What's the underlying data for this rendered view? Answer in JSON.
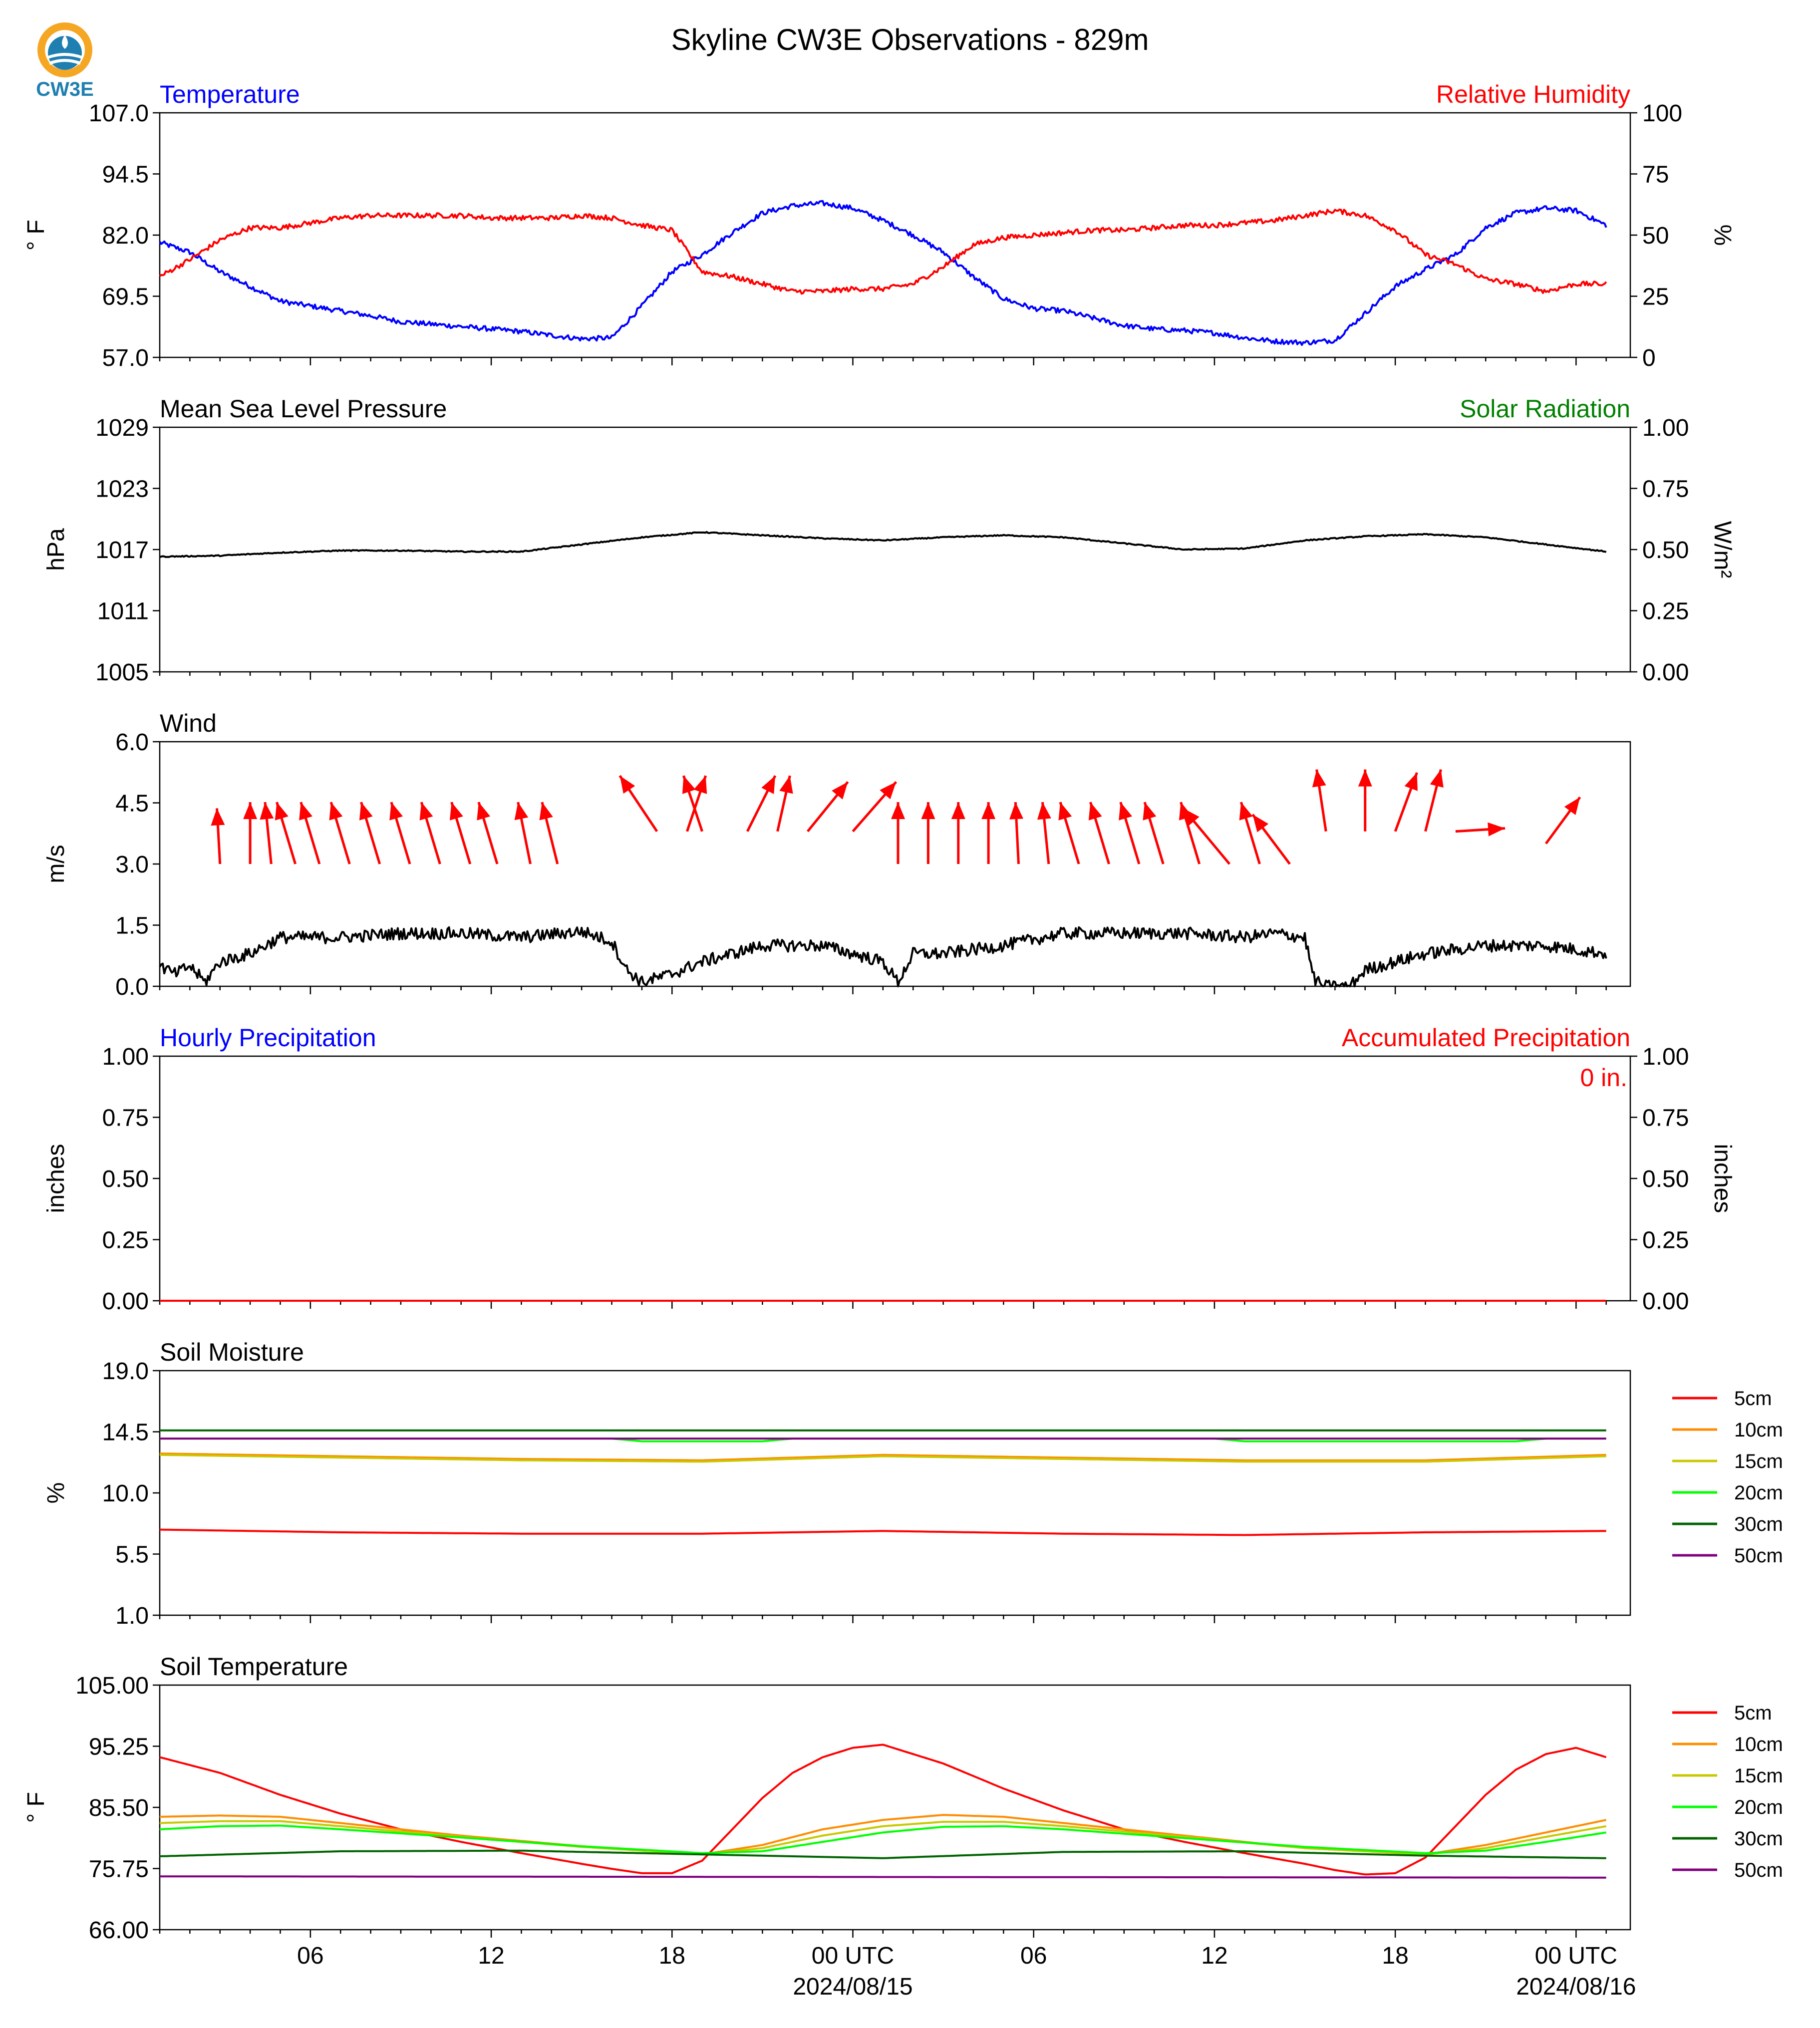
{
  "title": "Skyline CW3E Observations - 829m",
  "logo_text": "CW3E",
  "colors": {
    "blue": "#0000ff",
    "red": "#ff0000",
    "green": "#008000",
    "black": "#000000",
    "orange": "#ff8c00",
    "olive": "#c8c800",
    "lime": "#00ff00",
    "darkgreen": "#006400",
    "purple": "#800080",
    "logo_orange": "#f5a623",
    "logo_blue": "#1e7fb0"
  },
  "x_axis": {
    "tick_labels": [
      "06",
      "12",
      "18",
      "00 UTC",
      "06",
      "12",
      "18",
      "00 UTC"
    ],
    "date_labels": [
      "2024/08/15",
      "2024/08/16"
    ]
  },
  "chart_data": [
    {
      "type": "line",
      "title_left": "Temperature",
      "title_right": "Relative Humidity",
      "ylabel": "° F",
      "ylabel_right": "%",
      "yticks": [
        "57.0",
        "69.5",
        "82.0",
        "94.5",
        "107.0"
      ],
      "yticks_right": [
        "0",
        "25",
        "50",
        "75",
        "100"
      ],
      "ylim": [
        57,
        107
      ],
      "ylim_right": [
        0,
        100
      ],
      "x_unit": "hours since 2024/08/14 01:00 UTC",
      "series": [
        {
          "name": "Temperature",
          "axis": "left",
          "color": "blue",
          "noise": 0.5,
          "x": [
            0,
            1,
            2,
            3,
            4,
            5,
            6,
            7,
            8,
            9,
            10,
            11,
            12,
            13,
            14,
            15,
            16,
            17,
            18,
            19,
            20,
            21,
            22,
            23,
            24,
            25,
            26,
            27,
            28,
            29,
            30,
            31,
            32,
            33,
            34,
            35,
            36,
            37,
            38,
            39,
            40,
            41,
            42,
            43,
            44,
            45,
            46,
            47,
            48
          ],
          "values": [
            80.5,
            78.5,
            74.5,
            71.5,
            68.5,
            67.5,
            66.5,
            65.5,
            64.3,
            63.8,
            63.3,
            62.8,
            62.3,
            61.5,
            60.8,
            61.0,
            67.5,
            74.5,
            78.0,
            82.5,
            86.5,
            88.0,
            88.5,
            87.5,
            85.0,
            82.0,
            78.5,
            73.5,
            69.0,
            67.0,
            66.5,
            65.0,
            63.5,
            62.8,
            62.5,
            62.0,
            61.0,
            60.3,
            60.0,
            60.5,
            66.0,
            71.5,
            75.0,
            78.0,
            83.5,
            86.5,
            87.5,
            87.0,
            84.0
          ]
        },
        {
          "name": "Relative Humidity",
          "axis": "right",
          "color": "red",
          "noise": 1.0,
          "x": [
            0,
            1,
            2,
            3,
            4,
            5,
            6,
            7,
            8,
            9,
            10,
            11,
            12,
            13,
            14,
            15,
            16,
            17,
            18,
            19,
            20,
            21,
            22,
            23,
            24,
            25,
            26,
            27,
            28,
            29,
            30,
            31,
            32,
            33,
            34,
            35,
            36,
            37,
            38,
            39,
            40,
            41,
            42,
            43,
            44,
            45,
            46,
            47,
            48
          ],
          "values": [
            33,
            40,
            48,
            53,
            53,
            55,
            57,
            58,
            58,
            58,
            58,
            57,
            57,
            57,
            58,
            57,
            54,
            52,
            35,
            33,
            30,
            27,
            27,
            28,
            28,
            30,
            37,
            46,
            49,
            50,
            51,
            52,
            52,
            53,
            54,
            54,
            55,
            56,
            58,
            60,
            58,
            52,
            42,
            38,
            32,
            30,
            27,
            30,
            30
          ]
        }
      ]
    },
    {
      "type": "line",
      "title_left": "Mean Sea Level Pressure",
      "title_right": "Solar Radiation",
      "ylabel": "hPa",
      "ylabel_right": "W/m²",
      "yticks": [
        "1005",
        "1011",
        "1017",
        "1023",
        "1029"
      ],
      "yticks_right": [
        "0.00",
        "0.25",
        "0.50",
        "0.75",
        "1.00"
      ],
      "ylim": [
        1005,
        1029
      ],
      "ylim_right": [
        0,
        1
      ],
      "series": [
        {
          "name": "Mean Sea Level Pressure",
          "axis": "left",
          "color": "black",
          "noise": 0.05,
          "x": [
            0,
            2,
            4,
            6,
            8,
            10,
            12,
            14,
            16,
            18,
            20,
            22,
            24,
            26,
            28,
            30,
            32,
            34,
            36,
            38,
            40,
            42,
            44,
            46,
            48
          ],
          "values": [
            1016.3,
            1016.4,
            1016.7,
            1016.9,
            1016.9,
            1016.8,
            1016.8,
            1017.5,
            1018.2,
            1018.7,
            1018.4,
            1018.1,
            1017.9,
            1018.2,
            1018.4,
            1018.2,
            1017.6,
            1017.0,
            1017.1,
            1017.9,
            1018.3,
            1018.5,
            1018.2,
            1017.5,
            1016.8
          ]
        }
      ]
    },
    {
      "type": "line",
      "title_left": "Wind",
      "ylabel": "m/s",
      "yticks": [
        "0.0",
        "1.5",
        "3.0",
        "4.5",
        "6.0"
      ],
      "ylim": [
        0,
        6
      ],
      "series": [
        {
          "name": "Wind",
          "axis": "left",
          "color": "black",
          "noise": 0.15,
          "x": [
            0,
            0.5,
            1,
            1.5,
            2,
            3,
            4,
            6,
            8,
            10,
            12,
            14,
            15,
            15.5,
            16,
            17,
            18,
            19,
            20,
            21,
            22,
            23,
            24,
            24.5,
            25,
            26,
            28,
            30,
            32,
            34,
            36,
            37,
            38,
            38.3,
            38.6,
            39.5,
            40,
            41,
            42,
            43,
            44,
            46,
            48
          ],
          "values": [
            0.5,
            0.3,
            0.5,
            0.1,
            0.6,
            0.8,
            1.2,
            1.2,
            1.3,
            1.3,
            1.2,
            1.35,
            1.1,
            0.4,
            0.1,
            0.3,
            0.6,
            0.8,
            1.0,
            1.0,
            1.0,
            0.8,
            0.6,
            0.1,
            0.8,
            0.8,
            1.0,
            1.3,
            1.3,
            1.3,
            1.2,
            1.3,
            1.2,
            0.2,
            0.0,
            0.0,
            0.4,
            0.6,
            0.8,
            0.9,
            1.0,
            1.0,
            0.8
          ]
        }
      ],
      "wind_vectors": {
        "x": [
          2,
          3,
          3.7,
          4.5,
          5.3,
          6.3,
          7.3,
          8.3,
          9.3,
          10.3,
          11.2,
          12.3,
          13.2,
          16.5,
          17.5,
          18,
          19.5,
          20.5,
          21.5,
          23,
          24.5,
          25.5,
          26.5,
          27.5,
          28.5,
          29.5,
          30.5,
          31.5,
          32.5,
          33.3,
          34.5,
          35.5,
          36.5,
          37.5,
          38.7,
          40,
          41,
          42,
          43,
          46
        ],
        "y": [
          3.0,
          3.0,
          3.0,
          3.0,
          3.0,
          3.0,
          3.0,
          3.0,
          3.0,
          3.0,
          3.0,
          3.0,
          3.0,
          3.8,
          3.8,
          3.8,
          3.8,
          3.8,
          3.8,
          3.8,
          3.0,
          3.0,
          3.0,
          3.0,
          3.0,
          3.0,
          3.0,
          3.0,
          3.0,
          3.0,
          3.0,
          3.0,
          3.0,
          3.0,
          3.8,
          3.8,
          3.8,
          3.8,
          3.8,
          3.5
        ],
        "u": [
          -0.1,
          0,
          -0.2,
          -0.6,
          -0.6,
          -0.6,
          -0.6,
          -0.6,
          -0.6,
          -0.6,
          -0.6,
          -0.4,
          -0.5,
          -1.2,
          0.6,
          -0.6,
          0.9,
          0.4,
          1.3,
          1.4,
          0,
          0,
          0,
          0,
          -0.1,
          -0.2,
          -0.6,
          -0.6,
          -0.6,
          -0.6,
          -0.6,
          -1.5,
          -0.6,
          -1.2,
          -0.3,
          0,
          0.7,
          0.5,
          1.6,
          1.1
        ],
        "v": [
          1.8,
          2.0,
          2.0,
          2.0,
          2.0,
          2.0,
          2.0,
          2.0,
          2.0,
          2.0,
          2.0,
          2.0,
          2.0,
          1.8,
          1.8,
          1.8,
          1.8,
          1.8,
          1.6,
          1.6,
          2.0,
          2.0,
          2.0,
          2.0,
          2.0,
          2.0,
          2.0,
          2.0,
          2.0,
          2.0,
          2.0,
          1.8,
          2.0,
          1.6,
          2.0,
          2.0,
          1.9,
          2.0,
          0.1,
          1.5
        ]
      }
    },
    {
      "type": "line",
      "title_left": "Hourly Precipitation",
      "title_right": "Accumulated Precipitation",
      "annotation": "0 in.",
      "ylabel": "inches",
      "ylabel_right": "inches",
      "yticks": [
        "0.00",
        "0.25",
        "0.50",
        "0.75",
        "1.00"
      ],
      "yticks_right": [
        "0.00",
        "0.25",
        "0.50",
        "0.75",
        "1.00"
      ],
      "ylim": [
        0,
        1
      ],
      "ylim_right": [
        0,
        1
      ],
      "series": [
        {
          "name": "Accumulated Precipitation",
          "axis": "right",
          "color": "red",
          "noise": 0,
          "x": [
            0,
            48
          ],
          "values": [
            0,
            0
          ]
        }
      ]
    },
    {
      "type": "line",
      "title_left": "Soil Moisture",
      "ylabel": "%",
      "yticks": [
        "1.0",
        "5.5",
        "10.0",
        "14.5",
        "19.0"
      ],
      "ylim": [
        1,
        19
      ],
      "legend": [
        "5cm",
        "10cm",
        "15cm",
        "20cm",
        "30cm",
        "50cm"
      ],
      "series": [
        {
          "name": "5cm",
          "color": "red",
          "noise": 0,
          "x": [
            0,
            6,
            12,
            18,
            24,
            30,
            36,
            42,
            48
          ],
          "values": [
            7.3,
            7.1,
            7.0,
            7.0,
            7.2,
            7.0,
            6.9,
            7.1,
            7.2
          ]
        },
        {
          "name": "10cm",
          "color": "orange",
          "noise": 0,
          "x": [
            0,
            6,
            12,
            18,
            24,
            30,
            36,
            42,
            48
          ],
          "values": [
            12.9,
            12.7,
            12.5,
            12.4,
            12.8,
            12.6,
            12.4,
            12.4,
            12.8
          ]
        },
        {
          "name": "15cm",
          "color": "olive",
          "noise": 0,
          "x": [
            0,
            6,
            12,
            18,
            24,
            30,
            36,
            42,
            48
          ],
          "values": [
            12.8,
            12.6,
            12.4,
            12.3,
            12.7,
            12.5,
            12.3,
            12.3,
            12.7
          ]
        },
        {
          "name": "20cm",
          "color": "lime",
          "noise": 0,
          "x": [
            0,
            15,
            16,
            20,
            21,
            35,
            36,
            45,
            46,
            48
          ],
          "values": [
            14.0,
            14.0,
            13.8,
            13.8,
            14.0,
            14.0,
            13.8,
            13.8,
            14.0,
            14.0
          ]
        },
        {
          "name": "30cm",
          "color": "darkgreen",
          "noise": 0,
          "x": [
            0,
            48
          ],
          "values": [
            14.6,
            14.6
          ]
        },
        {
          "name": "50cm",
          "color": "purple",
          "noise": 0,
          "x": [
            0,
            48
          ],
          "values": [
            14.0,
            14.0
          ]
        }
      ]
    },
    {
      "type": "line",
      "title_left": "Soil Temperature",
      "ylabel": "° F",
      "yticks": [
        "66.00",
        "75.75",
        "85.50",
        "95.25",
        "105.00"
      ],
      "ylim": [
        66,
        105
      ],
      "legend": [
        "5cm",
        "10cm",
        "15cm",
        "20cm",
        "30cm",
        "50cm"
      ],
      "series": [
        {
          "name": "5cm",
          "color": "red",
          "noise": 0,
          "x": [
            0,
            2,
            4,
            6,
            8,
            10,
            12,
            14,
            15,
            16,
            17,
            18,
            19,
            20,
            21,
            22,
            23,
            24,
            26,
            28,
            30,
            32,
            34,
            36,
            38,
            39,
            40,
            41,
            42,
            43,
            44,
            45,
            46,
            47,
            48
          ],
          "values": [
            93.5,
            91.0,
            87.5,
            84.5,
            82.0,
            80.0,
            78.2,
            76.5,
            75.7,
            75.0,
            75.0,
            77.0,
            82.0,
            87.0,
            91.0,
            93.5,
            95.0,
            95.5,
            92.5,
            88.5,
            85.0,
            82.0,
            80.0,
            78.2,
            76.5,
            75.5,
            74.8,
            75.0,
            77.5,
            82.5,
            87.5,
            91.5,
            94.0,
            95.0,
            93.5
          ]
        },
        {
          "name": "10cm",
          "color": "orange",
          "noise": 0,
          "x": [
            0,
            2,
            4,
            6,
            10,
            14,
            18,
            20,
            22,
            24,
            26,
            28,
            30,
            34,
            38,
            42,
            44,
            46,
            48
          ],
          "values": [
            84.0,
            84.2,
            84.0,
            83.0,
            81.0,
            79.3,
            78.0,
            79.5,
            82.0,
            83.5,
            84.3,
            84.0,
            83.0,
            81.0,
            79.0,
            78.0,
            79.5,
            81.5,
            83.5
          ]
        },
        {
          "name": "15cm",
          "color": "olive",
          "noise": 0,
          "x": [
            0,
            2,
            4,
            6,
            10,
            14,
            18,
            20,
            22,
            24,
            26,
            28,
            30,
            34,
            38,
            42,
            44,
            46,
            48
          ],
          "values": [
            83.0,
            83.3,
            83.3,
            82.5,
            80.8,
            79.2,
            78.0,
            79.0,
            81.0,
            82.5,
            83.2,
            83.2,
            82.5,
            80.8,
            79.0,
            78.0,
            79.0,
            80.8,
            82.5
          ]
        },
        {
          "name": "20cm",
          "color": "lime",
          "noise": 0,
          "x": [
            0,
            2,
            4,
            6,
            10,
            14,
            18,
            20,
            22,
            24,
            26,
            28,
            30,
            34,
            38,
            42,
            44,
            46,
            48
          ],
          "values": [
            82.0,
            82.5,
            82.6,
            82.0,
            80.7,
            79.3,
            78.2,
            78.5,
            80.0,
            81.5,
            82.4,
            82.5,
            82.0,
            80.6,
            79.2,
            78.2,
            78.6,
            80.0,
            81.5
          ]
        },
        {
          "name": "30cm",
          "color": "darkgreen",
          "noise": 0,
          "x": [
            0,
            6,
            12,
            18,
            24,
            30,
            36,
            42,
            48
          ],
          "values": [
            77.7,
            78.5,
            78.6,
            78.0,
            77.4,
            78.4,
            78.5,
            77.8,
            77.4
          ]
        },
        {
          "name": "50cm",
          "color": "purple",
          "noise": 0,
          "x": [
            0,
            48
          ],
          "values": [
            74.5,
            74.3
          ]
        }
      ]
    }
  ]
}
